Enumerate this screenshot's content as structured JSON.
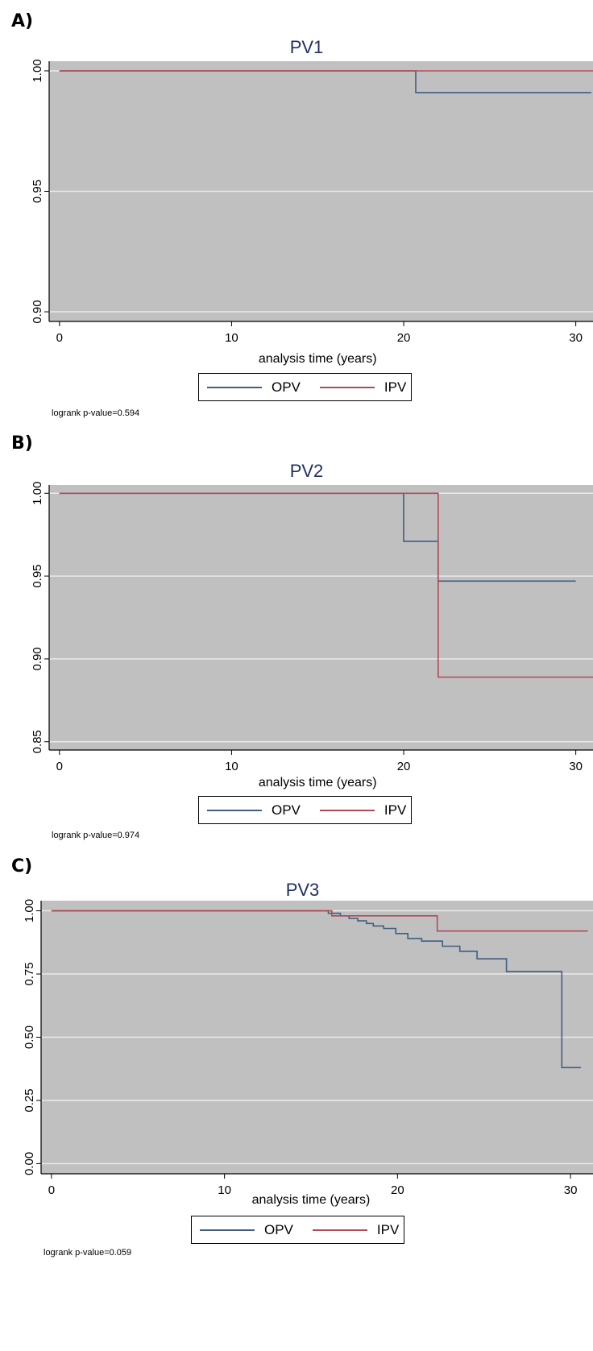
{
  "panels": [
    {
      "label": "A)",
      "pvalue": "logrank p-value=0.594"
    },
    {
      "label": "B)",
      "pvalue": "logrank p-value=0.974"
    },
    {
      "label": "C)",
      "pvalue": "logrank p-value=0.059"
    }
  ],
  "colors": {
    "OPV": "#3f5e82",
    "IPV": "#b04a57",
    "plot_bg": "#c0c0c0",
    "grid": "#eaeaea",
    "title": "#1f3060"
  },
  "chart_data": [
    {
      "type": "line",
      "title": "PV1",
      "xlabel": "analysis time (years)",
      "ylabel": "",
      "xlim": [
        -0.6,
        31
      ],
      "ylim": [
        0.896,
        1.004
      ],
      "xticks": [
        0,
        10,
        20,
        30
      ],
      "yticks": [
        0.9,
        0.95,
        1.0
      ],
      "ytick_labels": [
        "0.90",
        "0.95",
        "1.00"
      ],
      "grid": true,
      "legend": [
        "OPV",
        "IPV"
      ],
      "legend_position": "bottom",
      "series": [
        {
          "name": "OPV",
          "x": [
            0,
            20.7,
            20.7,
            30.9
          ],
          "y": [
            1.0,
            1.0,
            0.991,
            0.991
          ]
        },
        {
          "name": "IPV",
          "x": [
            0,
            31
          ],
          "y": [
            1.0,
            1.0
          ]
        }
      ]
    },
    {
      "type": "line",
      "title": "PV2",
      "xlabel": "analysis time (years)",
      "ylabel": "",
      "xlim": [
        -0.6,
        31
      ],
      "ylim": [
        0.845,
        1.005
      ],
      "xticks": [
        0,
        10,
        20,
        30
      ],
      "yticks": [
        0.85,
        0.9,
        0.95,
        1.0
      ],
      "ytick_labels": [
        "0.85",
        "0.90",
        "0.95",
        "1.00"
      ],
      "grid": true,
      "legend": [
        "OPV",
        "IPV"
      ],
      "legend_position": "bottom",
      "series": [
        {
          "name": "OPV",
          "x": [
            0,
            20,
            20,
            22,
            22,
            30
          ],
          "y": [
            1.0,
            1.0,
            0.971,
            0.971,
            0.947,
            0.947
          ]
        },
        {
          "name": "IPV",
          "x": [
            0,
            22,
            22,
            31
          ],
          "y": [
            1.0,
            1.0,
            0.889,
            0.889
          ]
        }
      ]
    },
    {
      "type": "line",
      "title": "PV3",
      "xlabel": "analysis time (years)",
      "ylabel": "",
      "xlim": [
        -0.6,
        31.3
      ],
      "ylim": [
        -0.04,
        1.04
      ],
      "xticks": [
        0,
        10,
        20,
        30
      ],
      "yticks": [
        0.0,
        0.25,
        0.5,
        0.75,
        1.0
      ],
      "ytick_labels": [
        "0.00",
        "0.25",
        "0.50",
        "0.75",
        "1.00"
      ],
      "grid": true,
      "legend": [
        "OPV",
        "IPV"
      ],
      "legend_position": "bottom",
      "series": [
        {
          "name": "OPV",
          "x": [
            0,
            16,
            16,
            16.7,
            16.7,
            17.2,
            17.2,
            17.7,
            17.7,
            18.2,
            18.2,
            18.6,
            18.6,
            19.2,
            19.2,
            19.9,
            19.9,
            20.6,
            20.6,
            21.4,
            21.4,
            22.6,
            22.6,
            23.6,
            23.6,
            24.6,
            24.6,
            26.3,
            26.3,
            29.5,
            29.5,
            30.6
          ],
          "y": [
            1.0,
            1.0,
            0.99,
            0.99,
            0.98,
            0.98,
            0.97,
            0.97,
            0.96,
            0.96,
            0.95,
            0.95,
            0.94,
            0.94,
            0.93,
            0.93,
            0.91,
            0.91,
            0.89,
            0.89,
            0.88,
            0.88,
            0.86,
            0.86,
            0.84,
            0.84,
            0.81,
            0.81,
            0.76,
            0.76,
            0.38,
            0.38
          ]
        },
        {
          "name": "IPV",
          "x": [
            0,
            16.2,
            16.2,
            22.3,
            22.3,
            31
          ],
          "y": [
            1.0,
            1.0,
            0.98,
            0.98,
            0.92,
            0.92
          ]
        }
      ]
    }
  ]
}
